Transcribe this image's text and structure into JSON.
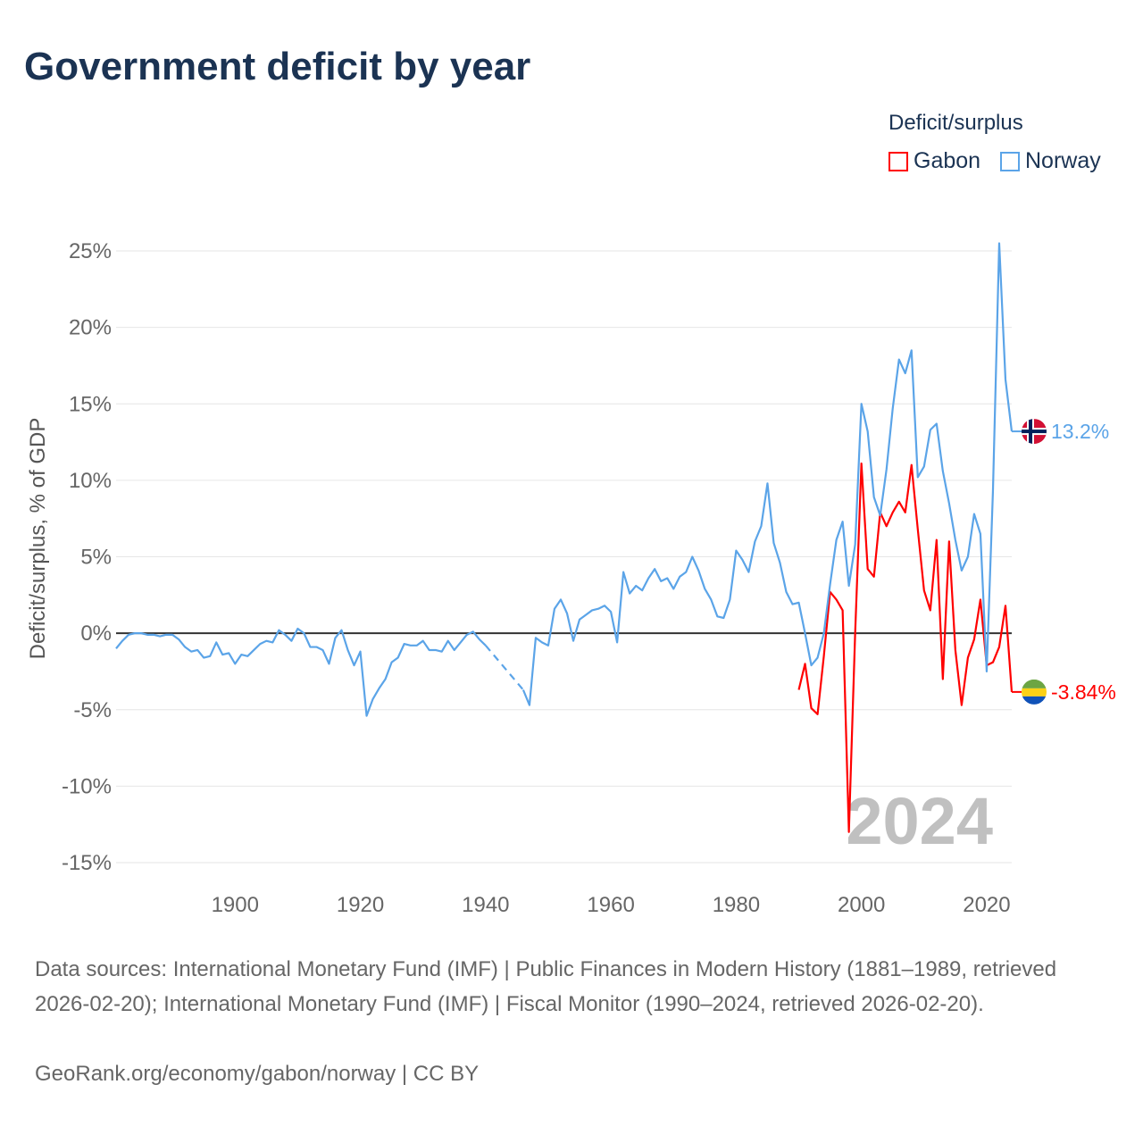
{
  "chart_data": {
    "type": "line",
    "title": "Government deficit by year",
    "ylabel": "Deficit/surplus, % of GDP",
    "xlabel": "",
    "xlim": [
      1881,
      2024
    ],
    "ylim": [
      -15,
      25
    ],
    "x_ticks": [
      1900,
      1920,
      1940,
      1960,
      1980,
      2000,
      2020
    ],
    "y_ticks": [
      -15,
      -10,
      -5,
      0,
      5,
      10,
      15,
      20,
      25
    ],
    "y_tick_labels": [
      "-15%",
      "-10%",
      "-5%",
      "0%",
      "5%",
      "10%",
      "15%",
      "20%",
      "25%"
    ],
    "grid": true,
    "legend": {
      "title": "Deficit/surplus",
      "placement": "top-right"
    },
    "year_overlay": "2024",
    "series": [
      {
        "name": "Gabon",
        "color": "#ff0000",
        "start_year": 1990,
        "end_label": "-3.84%",
        "values": [
          -3.7,
          -2.0,
          -4.9,
          -5.3,
          -1.5,
          2.7,
          2.2,
          1.5,
          -13.0,
          0.0,
          11.1,
          4.2,
          3.7,
          7.9,
          7.0,
          7.9,
          8.6,
          7.9,
          11.0,
          6.8,
          2.8,
          1.5,
          6.1,
          -3.0,
          6.0,
          -1.1,
          -4.7,
          -1.6,
          -0.4,
          2.2,
          -2.1,
          -1.9,
          -0.9,
          1.8,
          -3.84
        ]
      },
      {
        "name": "Norway",
        "color": "#5ba4e8",
        "start_year": 1881,
        "end_label": "13.2%",
        "values": [
          -1.0,
          -0.5,
          -0.1,
          0.0,
          0.0,
          -0.1,
          -0.1,
          -0.2,
          -0.1,
          -0.1,
          -0.4,
          -0.9,
          -1.2,
          -1.1,
          -1.6,
          -1.5,
          -0.6,
          -1.4,
          -1.3,
          -2.0,
          -1.4,
          -1.5,
          -1.1,
          -0.7,
          -0.5,
          -0.6,
          0.2,
          -0.1,
          -0.5,
          0.3,
          0.0,
          -0.9,
          -0.9,
          -1.1,
          -2.0,
          -0.3,
          0.2,
          -1.1,
          -2.1,
          -1.2,
          -5.4,
          -4.3,
          -3.6,
          -3.0,
          -1.9,
          -1.6,
          -0.7,
          -0.8,
          -0.8,
          -0.5,
          -1.1,
          -1.1,
          -1.2,
          -0.5,
          -1.1,
          -0.6,
          -0.1,
          0.1,
          -0.4,
          -0.8,
          null,
          null,
          null,
          null,
          null,
          -3.7,
          -4.7,
          -0.3,
          -0.6,
          -0.8,
          1.6,
          2.2,
          1.3,
          -0.5,
          0.9,
          1.2,
          1.5,
          1.6,
          1.8,
          1.4,
          -0.6,
          4.0,
          2.6,
          3.1,
          2.8,
          3.6,
          4.2,
          3.4,
          3.6,
          2.9,
          3.7,
          4.0,
          5.0,
          4.1,
          2.9,
          2.2,
          1.1,
          1.0,
          2.2,
          5.4,
          4.8,
          4.0,
          6.0,
          7.0,
          9.8,
          5.9,
          4.6,
          2.7,
          1.9,
          2.0,
          0.0,
          -2.1,
          -1.6,
          0.0,
          3.2,
          6.1,
          7.3,
          3.1,
          5.8,
          15.0,
          13.2,
          8.9,
          7.7,
          10.7,
          14.7,
          17.9,
          17.0,
          18.5,
          10.2,
          10.9,
          13.3,
          13.7,
          10.6,
          8.5,
          6.1,
          4.1,
          5.0,
          7.8,
          6.5,
          -2.5,
          9.3,
          25.5,
          16.6,
          13.2
        ]
      }
    ]
  },
  "footer": {
    "sources": "Data sources: International Monetary Fund (IMF) | Public Finances in Modern History (1881–1989, retrieved 2026-02-20); International Monetary Fund (IMF) | Fiscal Monitor (1990–2024, retrieved 2026-02-20).",
    "credit": "GeoRank.org/economy/gabon/norway | CC BY"
  }
}
